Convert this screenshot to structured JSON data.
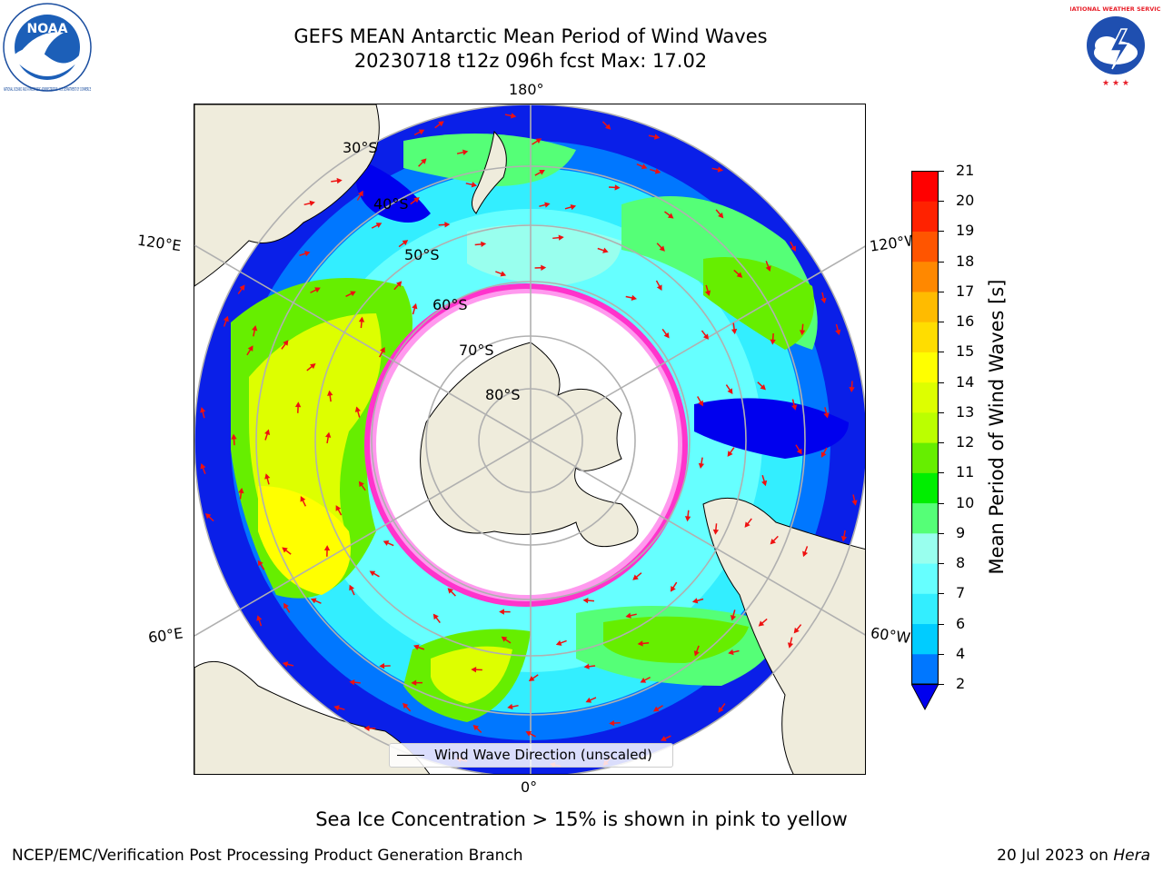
{
  "header": {
    "title_line1": "GEFS MEAN Antarctic Mean Period of Wind Waves",
    "title_line2": "20230718 t12z 096h fcst   Max: 17.02"
  },
  "logos": {
    "left": {
      "name": "noaa-logo",
      "text": "NOAA",
      "ring_text": "NATIONAL OCEANIC AND ATMOSPHERIC ADMINISTRATION · U.S. DEPARTMENT OF COMMERCE",
      "color": "#1c4fa0"
    },
    "right": {
      "name": "nws-logo",
      "ring_text": "NATIONAL WEATHER SERVICE",
      "color": "#e8202a"
    }
  },
  "map": {
    "projection": "south-polar-stereographic",
    "lon_labels": {
      "top": "180°",
      "bottom": "0°",
      "upper_left": "120°E",
      "lower_left": "60°E",
      "upper_right": "120°W",
      "lower_right": "60°W"
    },
    "lat_labels": [
      "30°S",
      "40°S",
      "50°S",
      "60°S",
      "70°S",
      "80°S"
    ],
    "ice_note_colors": [
      "#ff33cc",
      "#ff99ee",
      "#ffee66"
    ],
    "land_color": "#efecdc",
    "arrow_color": "#ee1111"
  },
  "legend": {
    "label": "Wind Wave Direction (unscaled)"
  },
  "colorbar": {
    "title": "Mean Period of Wind Waves [s]",
    "ticks": [
      "2",
      "4",
      "6",
      "7",
      "8",
      "9",
      "10",
      "11",
      "12",
      "13",
      "14",
      "15",
      "16",
      "17",
      "18",
      "19",
      "20",
      "21"
    ],
    "colors": [
      "#0000ee",
      "#0077ff",
      "#00ccff",
      "#33eeff",
      "#66ffff",
      "#99ffee",
      "#55ff77",
      "#00ee00",
      "#66ee00",
      "#bbff00",
      "#ddff00",
      "#ffff00",
      "#ffdd00",
      "#ffbb00",
      "#ff8800",
      "#ff5500",
      "#ff2200",
      "#ff0000"
    ],
    "extend": "min"
  },
  "caption": "Sea Ice Concentration > 15% is shown in pink to yellow",
  "footer": {
    "left": "NCEP/EMC/Verification Post Processing Product Generation Branch",
    "right_date": "20 Jul 2023 on ",
    "right_machine": "Hera"
  }
}
